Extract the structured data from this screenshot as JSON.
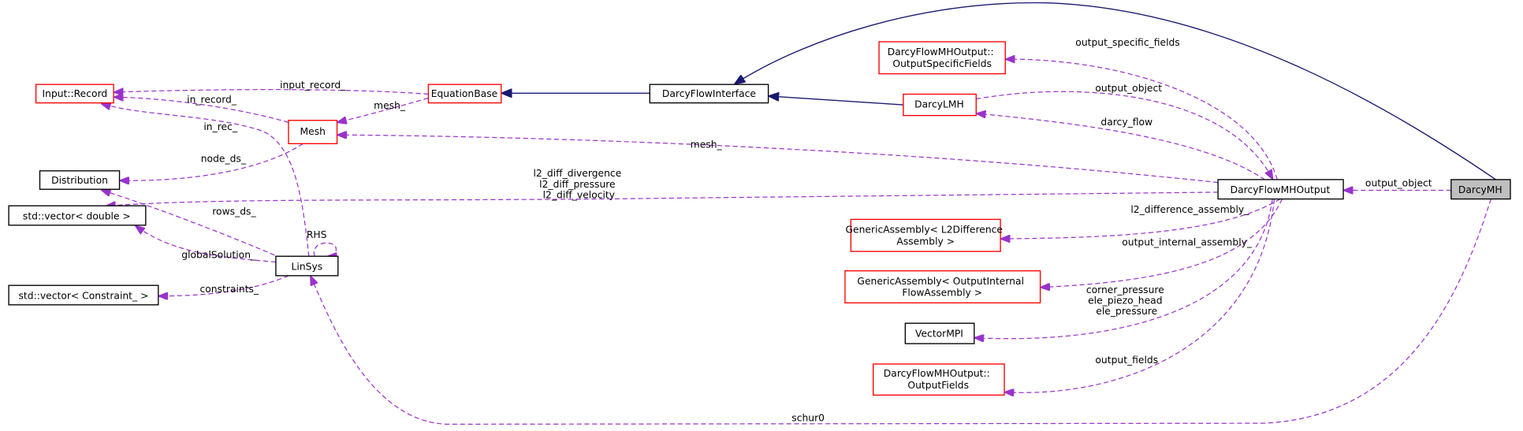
{
  "colors": {
    "dependency": "#9a32cd",
    "inheritance": "#191970",
    "undocumented_border": "#ff0000",
    "documented_border": "#000000",
    "current_fill": "#bfbfbf"
  },
  "nodes": {
    "input_record": "Input::Record",
    "equation_base": "EquationBase",
    "darcy_flow_interface": "DarcyFlowInterface",
    "mesh": "Mesh",
    "distribution": "Distribution",
    "std_vector_double": "std::vector< double >",
    "linsys": "LinSys",
    "std_vector_constraint": "std::vector< Constraint_ >",
    "output_specific_fields": [
      "DarcyFlowMHOutput::",
      "OutputSpecificFields"
    ],
    "darcy_lmh": "DarcyLMH",
    "darcy_flow_mh_output": "DarcyFlowMHOutput",
    "darcy_mh": "DarcyMH",
    "generic_assembly_l2": [
      "GenericAssembly< L2Difference",
      "Assembly >"
    ],
    "generic_assembly_internal": [
      "GenericAssembly< OutputInternal",
      "FlowAssembly >"
    ],
    "vector_mpi": "VectorMPI",
    "output_fields": [
      "DarcyFlowMHOutput::",
      "OutputFields"
    ]
  },
  "edge_labels": {
    "input_record": "input_record_",
    "in_record": "in_record_",
    "equation_mesh": "mesh_",
    "in_rec": "in_rec_",
    "node_ds": "node_ds_",
    "rows_ds": "rows_ds_",
    "l2_diff": [
      "l2_diff_divergence",
      "l2_diff_pressure",
      "l2_diff_velocity"
    ],
    "rhs": "RHS",
    "global_solution": "globalSolution_",
    "constraints": "constraints_",
    "output_mesh": "mesh_",
    "output_specific_fields": "output_specific_fields",
    "output_object_lmh": "output_object",
    "darcy_flow": "darcy_flow",
    "output_object_mh": "output_object",
    "l2_difference_assembly": "l2_difference_assembly_",
    "output_internal_assembly": "output_internal_assembly_",
    "pressures": [
      "corner_pressure",
      "ele_piezo_head",
      "ele_pressure"
    ],
    "output_fields": "output_fields",
    "schur0": "schur0"
  }
}
